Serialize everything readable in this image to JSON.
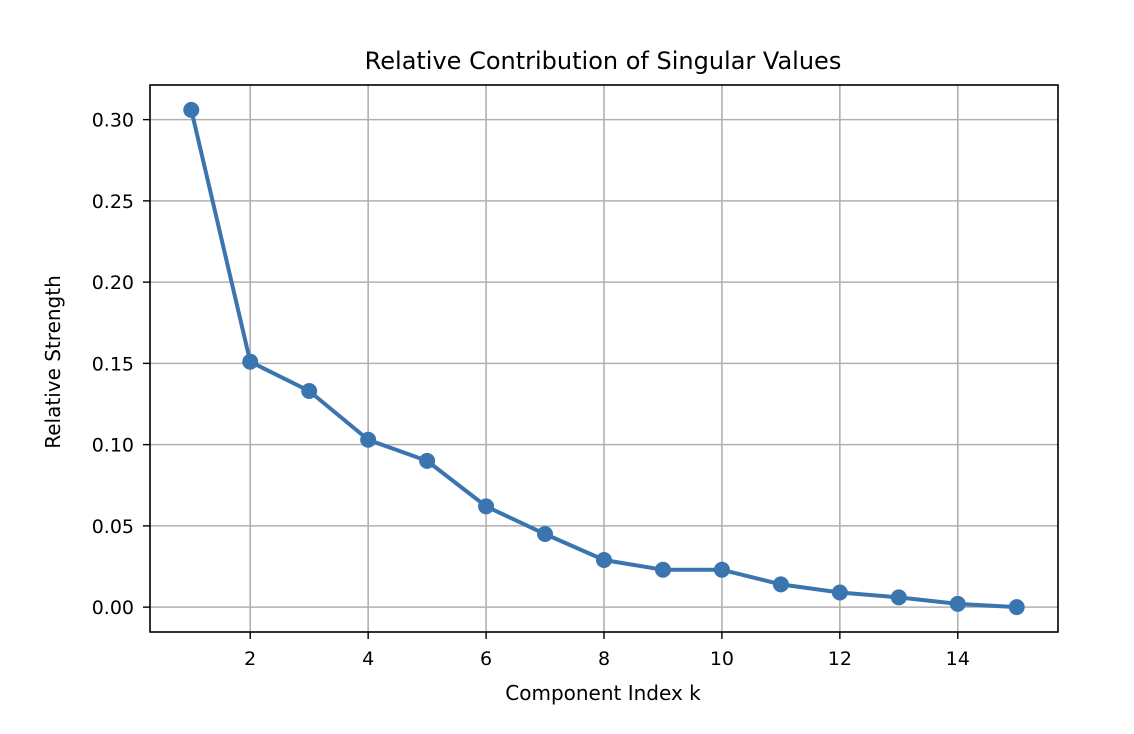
{
  "chart_data": {
    "type": "line",
    "title": "Relative Contribution of Singular Values",
    "xlabel": "Component Index k",
    "ylabel": "Relative Strength",
    "x": [
      1,
      2,
      3,
      4,
      5,
      6,
      7,
      8,
      9,
      10,
      11,
      12,
      13,
      14,
      15
    ],
    "series": [
      {
        "values": [
          0.306,
          0.151,
          0.133,
          0.103,
          0.09,
          0.062,
          0.045,
          0.029,
          0.023,
          0.023,
          0.014,
          0.009,
          0.006,
          0.002,
          0.0
        ]
      }
    ],
    "xlim": [
      0.3,
      15.7
    ],
    "ylim": [
      -0.0153,
      0.3213
    ],
    "xticks": [
      2,
      4,
      6,
      8,
      10,
      12,
      14
    ],
    "xtick_labels": [
      "2",
      "4",
      "6",
      "8",
      "10",
      "12",
      "14"
    ],
    "yticks": [
      0.0,
      0.05,
      0.1,
      0.15,
      0.2,
      0.25,
      0.3
    ],
    "ytick_labels": [
      "0.00",
      "0.05",
      "0.10",
      "0.15",
      "0.20",
      "0.25",
      "0.30"
    ],
    "grid": true,
    "marker": "circle",
    "line_color": "#3a75b0"
  }
}
